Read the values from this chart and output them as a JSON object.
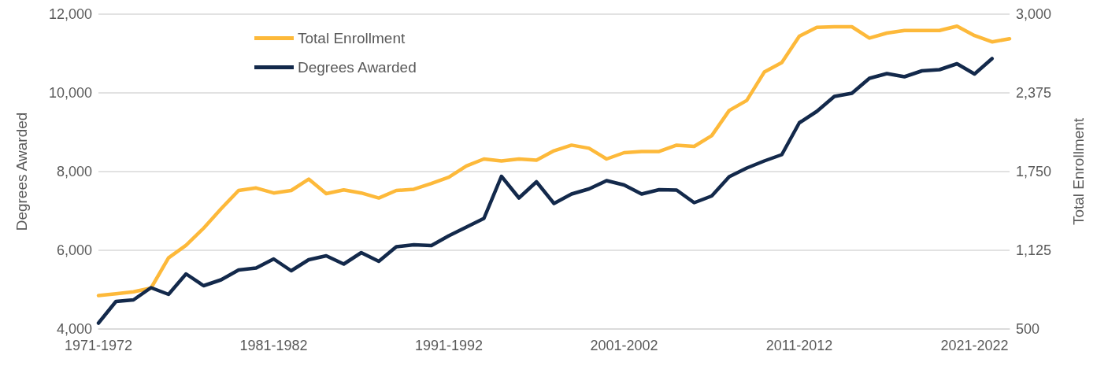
{
  "chart_data": {
    "type": "line",
    "ylabel": "Degrees Awarded",
    "y2label": "Total Enrollment",
    "categories": [
      "1971-1972",
      null,
      null,
      null,
      null,
      null,
      null,
      null,
      null,
      null,
      "1981-1982",
      null,
      null,
      null,
      null,
      null,
      null,
      null,
      null,
      null,
      "1991-1992",
      null,
      null,
      null,
      null,
      null,
      null,
      null,
      null,
      null,
      "2001-2002",
      null,
      null,
      null,
      null,
      null,
      null,
      null,
      null,
      null,
      "2011-2012",
      null,
      null,
      null,
      null,
      null,
      null,
      null,
      null,
      null,
      "2021-2022",
      null,
      null
    ],
    "series": [
      {
        "name": "Total Enrollment",
        "color": "#fdb93a",
        "axis": "y2",
        "values": [
          765,
          780,
          795,
          825,
          1065,
          1165,
          1300,
          1455,
          1600,
          1620,
          1580,
          1600,
          1690,
          1575,
          1605,
          1580,
          1540,
          1600,
          1610,
          1655,
          1705,
          1795,
          1850,
          1835,
          1850,
          1840,
          1915,
          1960,
          1935,
          1850,
          1900,
          1910,
          1910,
          1960,
          1950,
          2035,
          2235,
          2315,
          2540,
          2615,
          2825,
          2895,
          2900,
          2900,
          2810,
          2850,
          2870,
          2870,
          2870,
          2905,
          2830,
          2780,
          2805
        ]
      },
      {
        "name": "Degrees Awarded",
        "color": "#13294b",
        "values": [
          4150,
          4700,
          4740,
          5050,
          4880,
          5400,
          5100,
          5250,
          5500,
          5550,
          5780,
          5480,
          5760,
          5860,
          5650,
          5940,
          5720,
          6090,
          6140,
          6120,
          6370,
          6590,
          6810,
          7880,
          7330,
          7740,
          7190,
          7430,
          7560,
          7770,
          7660,
          7430,
          7540,
          7530,
          7210,
          7380,
          7870,
          8090,
          8270,
          8430,
          9240,
          9530,
          9910,
          9990,
          10370,
          10490,
          10410,
          10560,
          10590,
          10740,
          10480,
          10870,
          null
        ]
      }
    ],
    "ylim": [
      4000,
      12000
    ],
    "yticks": [
      {
        "value": 4000,
        "label": "4,000"
      },
      {
        "value": 6000,
        "label": "6,000"
      },
      {
        "value": 8000,
        "label": "8,000"
      },
      {
        "value": 10000,
        "label": "10,000"
      },
      {
        "value": 12000,
        "label": "12,000"
      }
    ],
    "y2lim": [
      500,
      3000
    ],
    "y2ticks": [
      {
        "value": 500,
        "label": "500"
      },
      {
        "value": 1125,
        "label": "1,125"
      },
      {
        "value": 1750,
        "label": "1,750"
      },
      {
        "value": 2375,
        "label": "2,375"
      },
      {
        "value": 3000,
        "label": "3,000"
      }
    ],
    "grid": "y",
    "legend": "top left",
    "marker": "none",
    "line_style": "solid"
  }
}
